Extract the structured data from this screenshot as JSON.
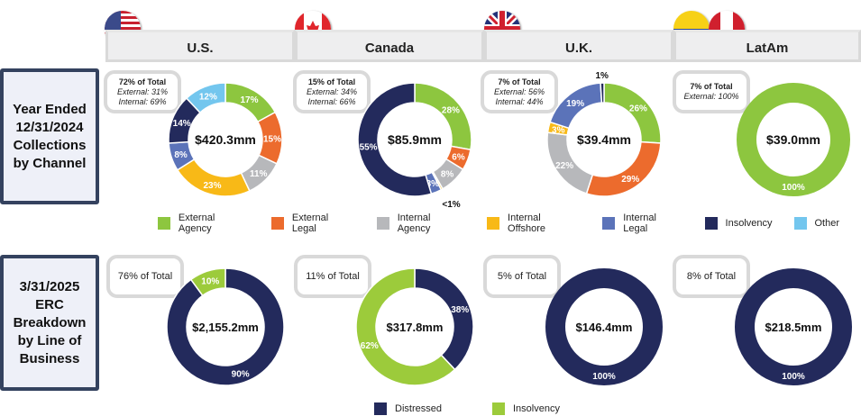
{
  "headers": [
    "U.S.",
    "Canada",
    "U.K.",
    "LatAm"
  ],
  "row_labels": [
    "Year Ended 12/31/2024 Collections by Channel",
    "3/31/2025 ERC Breakdown by Line of Business"
  ],
  "callouts_top": [
    {
      "total": "72% of Total",
      "lines": [
        "External: 31%",
        "Internal: 69%"
      ]
    },
    {
      "total": "15% of Total",
      "lines": [
        "External: 34%",
        "Internal: 66%"
      ]
    },
    {
      "total": "7% of Total",
      "lines": [
        "External: 56%",
        "Internal: 44%"
      ]
    },
    {
      "total": "7% of Total",
      "lines": [
        "External: 100%"
      ]
    }
  ],
  "callouts_bottom": [
    "76% of Total",
    "11% of Total",
    "5% of Total",
    "8% of Total"
  ],
  "chart_data": [
    {
      "type": "pie",
      "title": "U.S. Collections by Channel",
      "center": "$420.3mm",
      "categories": [
        "External Agency",
        "External Legal",
        "Internal Agency",
        "Internal Offshore",
        "Internal Legal",
        "Insolvency",
        "Other"
      ],
      "values": [
        17,
        15,
        11,
        23,
        8,
        14,
        12
      ],
      "labels": [
        "17%",
        "15%",
        "11%",
        "23%",
        "8%",
        "14%",
        "12%"
      ]
    },
    {
      "type": "pie",
      "title": "Canada Collections by Channel",
      "center": "$85.9mm",
      "categories": [
        "External Agency",
        "External Legal",
        "Internal Agency",
        "Internal Offshore",
        "Internal Legal",
        "Insolvency"
      ],
      "values": [
        28,
        6,
        8,
        0.5,
        3,
        55
      ],
      "labels": [
        "28%",
        "6%",
        "8%",
        "<1%",
        "3%",
        "55%"
      ]
    },
    {
      "type": "pie",
      "title": "U.K. Collections by Channel",
      "center": "$39.4mm",
      "categories": [
        "External Agency",
        "External Legal",
        "Internal Agency",
        "Internal Offshore",
        "Internal Legal",
        "Insolvency"
      ],
      "values": [
        26,
        29,
        22,
        3,
        19,
        1
      ],
      "labels": [
        "26%",
        "29%",
        "22%",
        "3%",
        "19%",
        "1%"
      ]
    },
    {
      "type": "pie",
      "title": "LatAm Collections by Channel",
      "center": "$39.0mm",
      "categories": [
        "External Agency"
      ],
      "values": [
        100
      ],
      "labels": [
        "100%"
      ]
    },
    {
      "type": "pie",
      "title": "U.S. ERC",
      "center": "$2,155.2mm",
      "categories": [
        "Distressed",
        "Insolvency"
      ],
      "values": [
        90,
        10
      ],
      "labels": [
        "90%",
        "10%"
      ]
    },
    {
      "type": "pie",
      "title": "Canada ERC",
      "center": "$317.8mm",
      "categories": [
        "Distressed",
        "Insolvency"
      ],
      "values": [
        38,
        62
      ],
      "labels": [
        "38%",
        "62%"
      ]
    },
    {
      "type": "pie",
      "title": "U.K. ERC",
      "center": "$146.4mm",
      "categories": [
        "Distressed"
      ],
      "values": [
        100
      ],
      "labels": [
        "100%"
      ]
    },
    {
      "type": "pie",
      "title": "LatAm ERC",
      "center": "$218.5mm",
      "categories": [
        "Distressed"
      ],
      "values": [
        100
      ],
      "labels": [
        "100%"
      ]
    }
  ],
  "colors": {
    "External Agency": "#8dc63f",
    "External Legal": "#ec6b2d",
    "Internal Agency": "#b7b8bb",
    "Internal Offshore": "#f8b917",
    "Internal Legal": "#5b73b9",
    "Insolvency": "#232a5c",
    "Other": "#73c6ee",
    "Distressed": "#232a5c",
    "InsolvencyERC": "#9ccb3b"
  },
  "legend_top": [
    "External Agency",
    "External Legal",
    "Internal Agency",
    "Internal Offshore",
    "Internal Legal",
    "Insolvency",
    "Other"
  ],
  "legend_bottom": [
    "Distressed",
    "Insolvency"
  ]
}
